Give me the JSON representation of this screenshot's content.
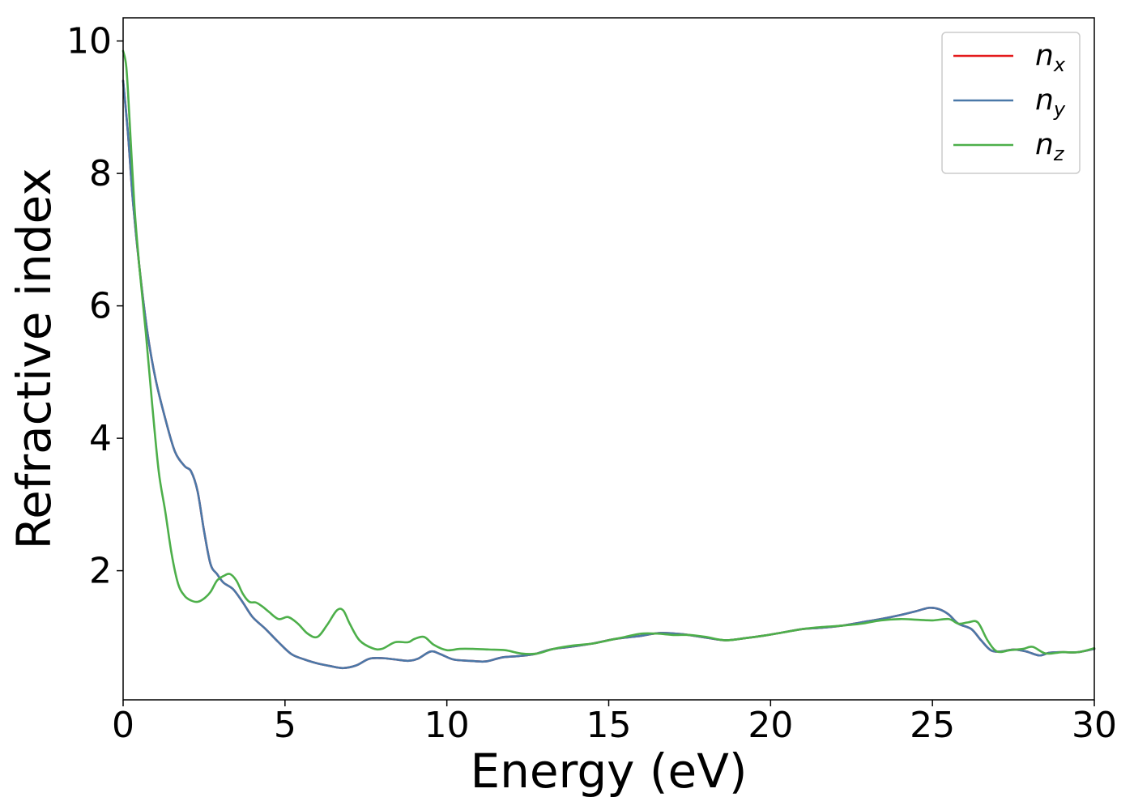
{
  "chart_data": {
    "type": "line",
    "title": "",
    "xlabel": "Energy (eV)",
    "ylabel": "Refractive index",
    "xlim": [
      0,
      30
    ],
    "ylim": [
      0.05,
      10.35
    ],
    "xticks": [
      0,
      5,
      10,
      15,
      20,
      25,
      30
    ],
    "yticks": [
      2,
      4,
      6,
      8,
      10
    ],
    "grid": false,
    "legend_position": "upper right",
    "series": [
      {
        "name": "n",
        "sub": "x",
        "color": "#e41a1c",
        "x": [
          0,
          0.15,
          0.3,
          0.5,
          0.75,
          1.0,
          1.3,
          1.6,
          1.9,
          2.1,
          2.3,
          2.5,
          2.7,
          2.9,
          3.1,
          3.4,
          3.7,
          4.0,
          4.4,
          4.8,
          5.2,
          5.6,
          6.0,
          6.4,
          6.8,
          7.2,
          7.6,
          8.0,
          8.4,
          8.8,
          9.1,
          9.5,
          9.8,
          10.2,
          10.7,
          11.2,
          11.7,
          12.2,
          12.7,
          13.2,
          13.8,
          14.5,
          15.2,
          15.9,
          16.6,
          17.3,
          18.0,
          18.6,
          19.2,
          19.8,
          20.4,
          21.0,
          21.6,
          22.2,
          22.8,
          23.4,
          24.0,
          24.5,
          24.9,
          25.2,
          25.5,
          25.8,
          26.2,
          26.5,
          26.8,
          27.1,
          27.5,
          27.9,
          28.3,
          28.6,
          29.0,
          29.5,
          30.0
        ],
        "y": [
          9.4,
          8.6,
          7.6,
          6.6,
          5.6,
          4.9,
          4.3,
          3.8,
          3.58,
          3.5,
          3.2,
          2.6,
          2.1,
          1.95,
          1.82,
          1.72,
          1.52,
          1.3,
          1.12,
          0.92,
          0.74,
          0.66,
          0.6,
          0.56,
          0.53,
          0.57,
          0.67,
          0.68,
          0.66,
          0.64,
          0.67,
          0.78,
          0.74,
          0.66,
          0.64,
          0.63,
          0.69,
          0.71,
          0.74,
          0.81,
          0.85,
          0.9,
          0.97,
          1.01,
          1.06,
          1.04,
          0.99,
          0.95,
          0.98,
          1.02,
          1.07,
          1.12,
          1.14,
          1.17,
          1.22,
          1.27,
          1.33,
          1.39,
          1.44,
          1.42,
          1.34,
          1.2,
          1.12,
          0.95,
          0.8,
          0.78,
          0.81,
          0.78,
          0.72,
          0.76,
          0.77,
          0.77,
          0.82
        ]
      },
      {
        "name": "n",
        "sub": "y",
        "color": "#4a78a8",
        "x": [
          0,
          0.15,
          0.3,
          0.5,
          0.75,
          1.0,
          1.3,
          1.6,
          1.9,
          2.1,
          2.3,
          2.5,
          2.7,
          2.9,
          3.1,
          3.4,
          3.7,
          4.0,
          4.4,
          4.8,
          5.2,
          5.6,
          6.0,
          6.4,
          6.8,
          7.2,
          7.6,
          8.0,
          8.4,
          8.8,
          9.1,
          9.5,
          9.8,
          10.2,
          10.7,
          11.2,
          11.7,
          12.2,
          12.7,
          13.2,
          13.8,
          14.5,
          15.2,
          15.9,
          16.6,
          17.3,
          18.0,
          18.6,
          19.2,
          19.8,
          20.4,
          21.0,
          21.6,
          22.2,
          22.8,
          23.4,
          24.0,
          24.5,
          24.9,
          25.2,
          25.5,
          25.8,
          26.2,
          26.5,
          26.8,
          27.1,
          27.5,
          27.9,
          28.3,
          28.6,
          29.0,
          29.5,
          30.0
        ],
        "y": [
          9.4,
          8.6,
          7.6,
          6.6,
          5.6,
          4.9,
          4.3,
          3.8,
          3.58,
          3.5,
          3.2,
          2.6,
          2.1,
          1.95,
          1.82,
          1.72,
          1.52,
          1.3,
          1.12,
          0.92,
          0.74,
          0.66,
          0.6,
          0.56,
          0.53,
          0.57,
          0.67,
          0.68,
          0.66,
          0.64,
          0.67,
          0.78,
          0.74,
          0.66,
          0.64,
          0.63,
          0.69,
          0.71,
          0.74,
          0.81,
          0.85,
          0.9,
          0.97,
          1.01,
          1.06,
          1.04,
          0.99,
          0.95,
          0.98,
          1.02,
          1.07,
          1.12,
          1.14,
          1.17,
          1.22,
          1.27,
          1.33,
          1.39,
          1.44,
          1.42,
          1.34,
          1.2,
          1.12,
          0.95,
          0.8,
          0.78,
          0.81,
          0.78,
          0.72,
          0.76,
          0.77,
          0.77,
          0.82
        ]
      },
      {
        "name": "n",
        "sub": "z",
        "color": "#4daf4a",
        "x": [
          0,
          0.1,
          0.2,
          0.35,
          0.5,
          0.7,
          0.9,
          1.1,
          1.3,
          1.5,
          1.7,
          1.9,
          2.1,
          2.3,
          2.5,
          2.7,
          2.9,
          3.1,
          3.3,
          3.5,
          3.7,
          3.9,
          4.1,
          4.3,
          4.5,
          4.8,
          5.1,
          5.4,
          5.7,
          6.0,
          6.3,
          6.6,
          6.8,
          7.0,
          7.3,
          7.7,
          8.0,
          8.4,
          8.8,
          9.0,
          9.3,
          9.6,
          10.0,
          10.4,
          10.8,
          11.3,
          11.8,
          12.3,
          12.8,
          13.3,
          13.9,
          14.5,
          15.0,
          15.5,
          16.0,
          16.5,
          17.0,
          17.5,
          18.0,
          18.6,
          19.2,
          19.8,
          20.4,
          21.0,
          21.6,
          22.2,
          22.8,
          23.4,
          24.0,
          24.5,
          25.0,
          25.5,
          25.8,
          26.1,
          26.4,
          26.7,
          27.0,
          27.4,
          27.8,
          28.1,
          28.5,
          29.0,
          29.5,
          30.0
        ],
        "y": [
          9.85,
          9.6,
          8.8,
          7.5,
          6.6,
          5.6,
          4.5,
          3.5,
          2.9,
          2.25,
          1.8,
          1.62,
          1.55,
          1.53,
          1.58,
          1.68,
          1.85,
          1.92,
          1.95,
          1.85,
          1.65,
          1.53,
          1.52,
          1.46,
          1.38,
          1.27,
          1.3,
          1.2,
          1.05,
          1.0,
          1.18,
          1.4,
          1.4,
          1.2,
          0.95,
          0.83,
          0.82,
          0.92,
          0.92,
          0.97,
          1.0,
          0.88,
          0.8,
          0.82,
          0.82,
          0.81,
          0.8,
          0.75,
          0.75,
          0.82,
          0.87,
          0.9,
          0.95,
          1.0,
          1.05,
          1.05,
          1.03,
          1.03,
          1.0,
          0.95,
          0.98,
          1.02,
          1.07,
          1.12,
          1.15,
          1.17,
          1.2,
          1.25,
          1.27,
          1.26,
          1.25,
          1.27,
          1.2,
          1.22,
          1.22,
          0.95,
          0.78,
          0.8,
          0.82,
          0.85,
          0.75,
          0.77,
          0.77,
          0.83
        ]
      }
    ]
  }
}
